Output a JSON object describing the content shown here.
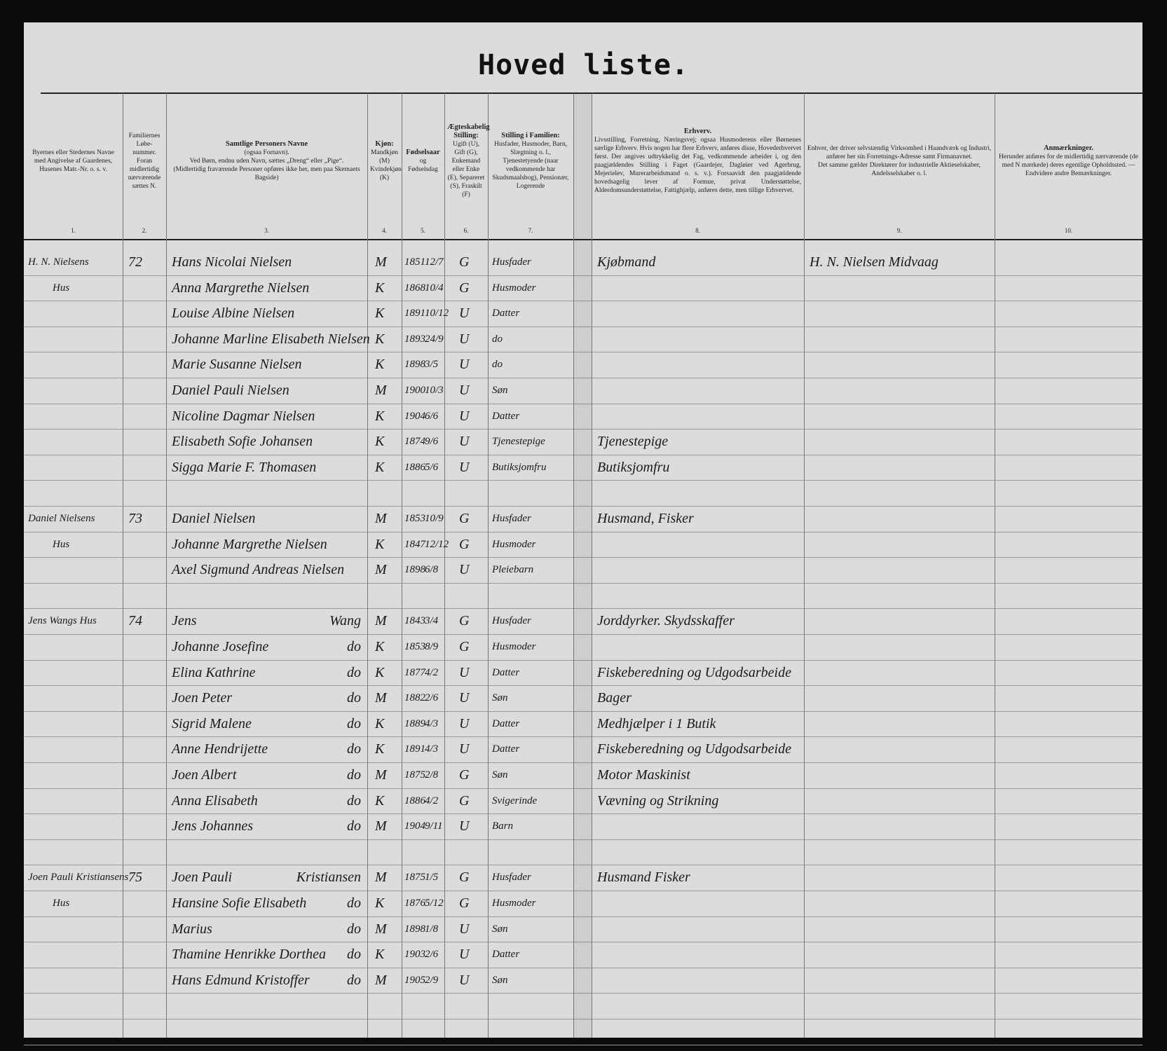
{
  "title": "Hoved liste.",
  "columns": [
    {
      "text": [
        "Byernes eller Stedernes Navne med Angivelse af Gaardenes, Husenes Matr.-Nr. o. s. v."
      ],
      "number": "1."
    },
    {
      "text": [
        "Familiernes Løbe-nummer.",
        "Foran midlertidig nærværende sættes N."
      ],
      "number": "2."
    },
    {
      "heading": "Samtlige Personers Navne",
      "text": [
        "(ogsaa Fornavn).",
        "Ved Børn, endnu uden Navn, sættes „Dreng“ eller „Pige“.",
        "(Midlertidig fraværende Personer opføres ikke her, men paa Skemaets Bagside)"
      ],
      "number": "3."
    },
    {
      "heading": "Kjøn:",
      "text": [
        "Mandkjøn (M) Kvindekjøn (K)"
      ],
      "number": "4."
    },
    {
      "heading": "Fødselsaar",
      "text": [
        "og",
        "Fødselsdag"
      ],
      "number": "5."
    },
    {
      "heading": "Ægteskabelig Stilling:",
      "text": [
        "Ugift (U), Gift (G), Enkemand eller Enke (E), Separeret (S), Fraskilt (F)"
      ],
      "number": "6."
    },
    {
      "heading": "Stilling i Familien:",
      "text": [
        "Husfader, Husmoder, Barn, Slægtning o. l., Tjenestetyende (naar vedkommende har Skudsmaalsbog), Pensionær, Logerende"
      ],
      "number": "7."
    },
    {
      "heading": "Erhverv.",
      "text": [
        "Livsstilling, Forretning, Næringsvej; ogsaa Husmoderens eller Børnenes særlige Erhverv. Hvis nogen har flere Erhverv, anføres disse, Hovederhvervet først. Der angives udtrykkelig det Fag, vedkommende arbeider i, og den paagjældendes Stilling i Faget (Gaardejer, Dagløier ved Agerbrug, Mejerielev, Murerarbeidsmand o. s. v.). Forsaavidt den paagjældende hovedsagelig lever af Formue, privat Understøttelse, Alderdomsunderstøttelse, Fattighjælp, anføres dette, men tillige Erhvervet."
      ],
      "number": "8."
    },
    {
      "text": [
        "Enhver, der driver selvstændig Virksomhed i Haandværk og Industri, anfører her sin Forretnings-Adresse samt Firmanavnet.",
        "Det samme gælder Direktører for industrielle Aktieselskaber, Andelsselskaber o. l."
      ],
      "number": "9."
    },
    {
      "heading": "Anmærkninger.",
      "text": [
        "Herunder anføres for de midlertidig nærværende (de med N mærkede) deres egentlige Opholdssted. — Endvidere andre Bemærkninger."
      ],
      "number": "10."
    }
  ],
  "households": [
    {
      "place": [
        "H. N. Nielsens",
        "Hus"
      ],
      "number": "72",
      "persons": [
        {
          "name": "Hans Nicolai Nielsen",
          "sex": "M",
          "year": "1851",
          "date": "12/7",
          "marital": "G",
          "position": "Husfader",
          "occupation": "Kjøbmand",
          "address": "H. N. Nielsen Midvaag"
        },
        {
          "name": "Anna Margrethe Nielsen",
          "sex": "K",
          "year": "1868",
          "date": "10/4",
          "marital": "G",
          "position": "Husmoder"
        },
        {
          "name": "Louise Albine Nielsen",
          "sex": "K",
          "year": "1891",
          "date": "10/12",
          "marital": "U",
          "position": "Datter"
        },
        {
          "name": "Johanne Marline Elisabeth Nielsen",
          "sex": "K",
          "year": "1893",
          "date": "24/9",
          "marital": "U",
          "position": "do"
        },
        {
          "name": "Marie Susanne Nielsen",
          "sex": "K",
          "year": "1898",
          "date": "3/5",
          "marital": "U",
          "position": "do"
        },
        {
          "name": "Daniel Pauli Nielsen",
          "sex": "M",
          "year": "1900",
          "date": "10/3",
          "marital": "U",
          "position": "Søn"
        },
        {
          "name": "Nicoline Dagmar Nielsen",
          "sex": "K",
          "year": "1904",
          "date": "6/6",
          "marital": "U",
          "position": "Datter"
        },
        {
          "name": "Elisabeth Sofie Johansen",
          "sex": "K",
          "year": "1874",
          "date": "9/6",
          "marital": "U",
          "position": "Tjenestepige",
          "occupation": "Tjenestepige"
        },
        {
          "name": "Sigga Marie F. Thomasen",
          "sex": "K",
          "year": "1886",
          "date": "5/6",
          "marital": "U",
          "position": "Butiksjomfru",
          "occupation": "Butiksjomfru"
        }
      ]
    },
    {
      "place": [
        "Daniel Nielsens",
        "Hus"
      ],
      "number": "73",
      "persons": [
        {
          "name": "Daniel Nielsen",
          "sex": "M",
          "year": "1853",
          "date": "10/9",
          "marital": "G",
          "position": "Husfader",
          "occupation": "Husmand, Fisker"
        },
        {
          "name": "Johanne Margrethe Nielsen",
          "sex": "K",
          "year": "1847",
          "date": "12/12",
          "marital": "G",
          "position": "Husmoder"
        },
        {
          "name": "Axel Sigmund Andreas Nielsen",
          "sex": "M",
          "year": "1898",
          "date": "6/8",
          "marital": "U",
          "position": "Pleiebarn"
        }
      ]
    },
    {
      "place": [
        "Jens Wangs Hus"
      ],
      "number": "74",
      "persons": [
        {
          "name": "Jens",
          "surname": "Wang",
          "sex": "M",
          "year": "1843",
          "date": "3/4",
          "marital": "G",
          "position": "Husfader",
          "occupation": "Jorddyrker. Skydsskaffer"
        },
        {
          "name": "Johanne Josefine",
          "surname": "do",
          "sex": "K",
          "year": "1853",
          "date": "8/9",
          "marital": "G",
          "position": "Husmoder"
        },
        {
          "name": "Elina Kathrine",
          "surname": "do",
          "sex": "K",
          "year": "1877",
          "date": "4/2",
          "marital": "U",
          "position": "Datter",
          "occupation": "Fiskeberedning og Udgodsarbeide"
        },
        {
          "name": "Joen Peter",
          "surname": "do",
          "sex": "M",
          "year": "1882",
          "date": "2/6",
          "marital": "U",
          "position": "Søn",
          "occupation": "Bager"
        },
        {
          "name": "Sigrid Malene",
          "surname": "do",
          "sex": "K",
          "year": "1889",
          "date": "4/3",
          "marital": "U",
          "position": "Datter",
          "occupation": "Medhjælper i 1 Butik"
        },
        {
          "name": "Anne Hendrijette",
          "surname": "do",
          "sex": "K",
          "year": "1891",
          "date": "4/3",
          "marital": "U",
          "position": "Datter",
          "occupation": "Fiskeberedning og Udgodsarbeide"
        },
        {
          "name": "Joen Albert",
          "surname": "do",
          "sex": "M",
          "year": "1875",
          "date": "2/8",
          "marital": "G",
          "position": "Søn",
          "occupation": "Motor Maskinist"
        },
        {
          "name": "Anna Elisabeth",
          "surname": "do",
          "sex": "K",
          "year": "1886",
          "date": "4/2",
          "marital": "G",
          "position": "Svigerinde",
          "occupation": "Vævning og Strikning"
        },
        {
          "name": "Jens Johannes",
          "surname": "do",
          "sex": "M",
          "year": "1904",
          "date": "9/11",
          "marital": "U",
          "position": "Barn"
        }
      ]
    },
    {
      "place": [
        "Joen Pauli Kristiansens",
        "Hus"
      ],
      "number": "75",
      "persons": [
        {
          "name": "Joen Pauli",
          "surname": "Kristiansen",
          "sex": "M",
          "year": "1875",
          "date": "1/5",
          "marital": "G",
          "position": "Husfader",
          "occupation": "Husmand Fisker"
        },
        {
          "name": "Hansine Sofie Elisabeth",
          "surname": "do",
          "sex": "K",
          "year": "1876",
          "date": "5/12",
          "marital": "G",
          "position": "Husmoder"
        },
        {
          "name": "Marius",
          "surname": "do",
          "sex": "M",
          "year": "1898",
          "date": "1/8",
          "marital": "U",
          "position": "Søn"
        },
        {
          "name": "Thamine Henrikke Dorthea",
          "surname": "do",
          "sex": "K",
          "year": "1903",
          "date": "2/6",
          "marital": "U",
          "position": "Datter"
        },
        {
          "name": "Hans Edmund Kristoffer",
          "surname": "do",
          "sex": "M",
          "year": "1905",
          "date": "2/9",
          "marital": "U",
          "position": "Søn"
        }
      ]
    }
  ]
}
